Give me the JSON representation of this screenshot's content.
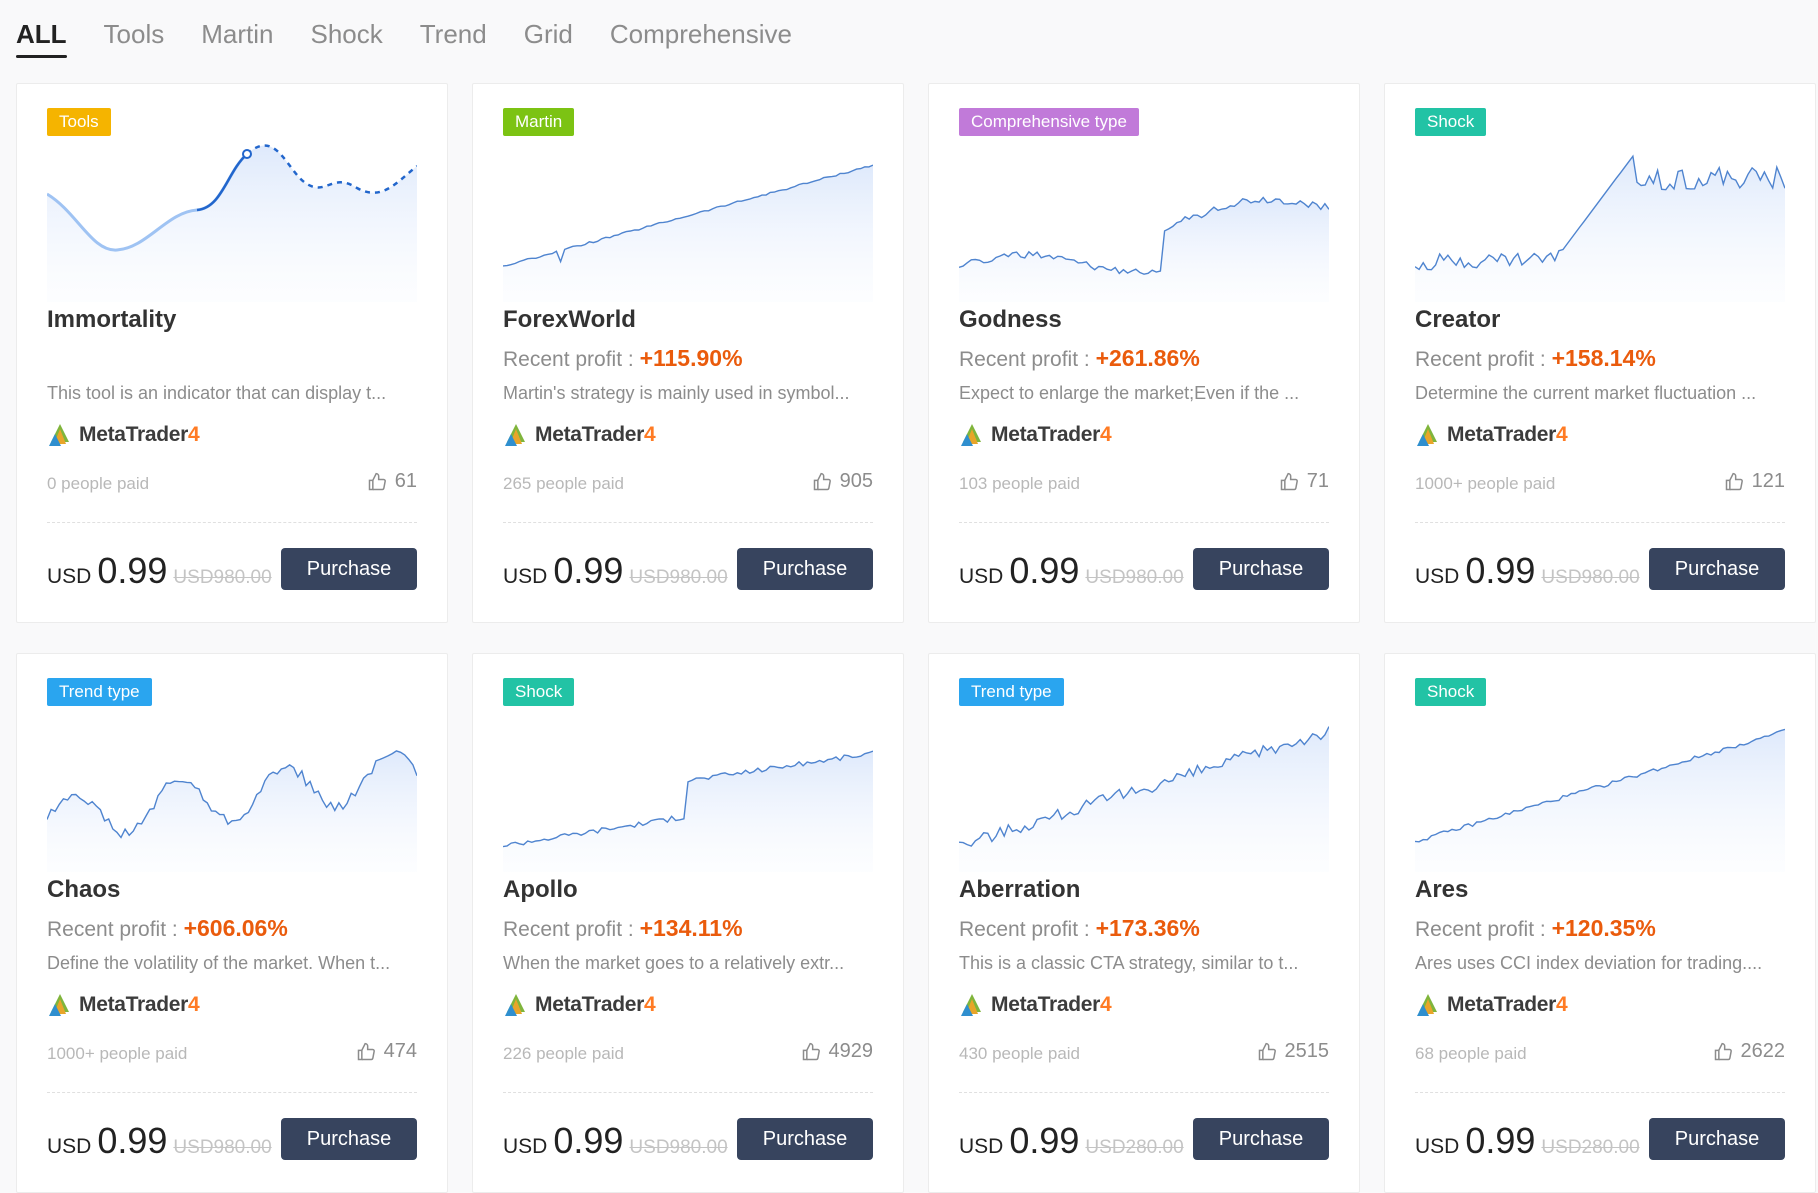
{
  "tabs": [
    "ALL",
    "Tools",
    "Martin",
    "Shock",
    "Trend",
    "Grid",
    "Comprehensive"
  ],
  "active_tab": 0,
  "labels": {
    "recent_profit": "Recent profit : ",
    "platform_name": "MetaTrader",
    "platform_version": "4",
    "currency": "USD",
    "purchase": "Purchase"
  },
  "colors": {
    "Tools": "#f5b400",
    "Martin": "#7cc313",
    "Comprehensive type": "#c17ad9",
    "Shock": "#22c3a5",
    "Trend type": "#2aa5ef"
  },
  "cards": [
    {
      "tag": "Tools",
      "name": "Immortality",
      "profit": "",
      "description": "This tool is an indicator that can display t...",
      "paid": "0 people paid",
      "likes": "61",
      "price": "0.99",
      "original": "USD980.00",
      "chart": "curve"
    },
    {
      "tag": "Martin",
      "name": "ForexWorld",
      "profit": "+115.90%",
      "description": "Martin's strategy is mainly used in symbol...",
      "paid": "265 people paid",
      "likes": "905",
      "price": "0.99",
      "original": "USD980.00",
      "chart": "martin"
    },
    {
      "tag": "Comprehensive type",
      "name": "Godness",
      "profit": "+261.86%",
      "description": "Expect to enlarge the market;Even if the ...",
      "paid": "103 people paid",
      "likes": "71",
      "price": "0.99",
      "original": "USD980.00",
      "chart": "godness"
    },
    {
      "tag": "Shock",
      "name": "Creator",
      "profit": "+158.14%",
      "description": "Determine the current market fluctuation ...",
      "paid": "1000+ people paid",
      "likes": "121",
      "price": "0.99",
      "original": "USD980.00",
      "chart": "creator"
    },
    {
      "tag": "Trend type",
      "name": "Chaos",
      "profit": "+606.06%",
      "description": "Define the volatility of the market. When t...",
      "paid": "1000+ people paid",
      "likes": "474",
      "price": "0.99",
      "original": "USD980.00",
      "chart": "chaos"
    },
    {
      "tag": "Shock",
      "name": "Apollo",
      "profit": "+134.11%",
      "description": "When the market goes to a relatively extr...",
      "paid": "226 people paid",
      "likes": "4929",
      "price": "0.99",
      "original": "USD980.00",
      "chart": "apollo"
    },
    {
      "tag": "Trend type",
      "name": "Aberration",
      "profit": "+173.36%",
      "description": "This is a classic CTA strategy, similar to t...",
      "paid": "430 people paid",
      "likes": "2515",
      "price": "0.99",
      "original": "USD280.00",
      "chart": "aberration"
    },
    {
      "tag": "Shock",
      "name": "Ares",
      "profit": "+120.35%",
      "description": "Ares uses CCI index deviation for trading....",
      "paid": "68 people paid",
      "likes": "2622",
      "price": "0.99",
      "original": "USD280.00",
      "chart": "ares"
    }
  ]
}
